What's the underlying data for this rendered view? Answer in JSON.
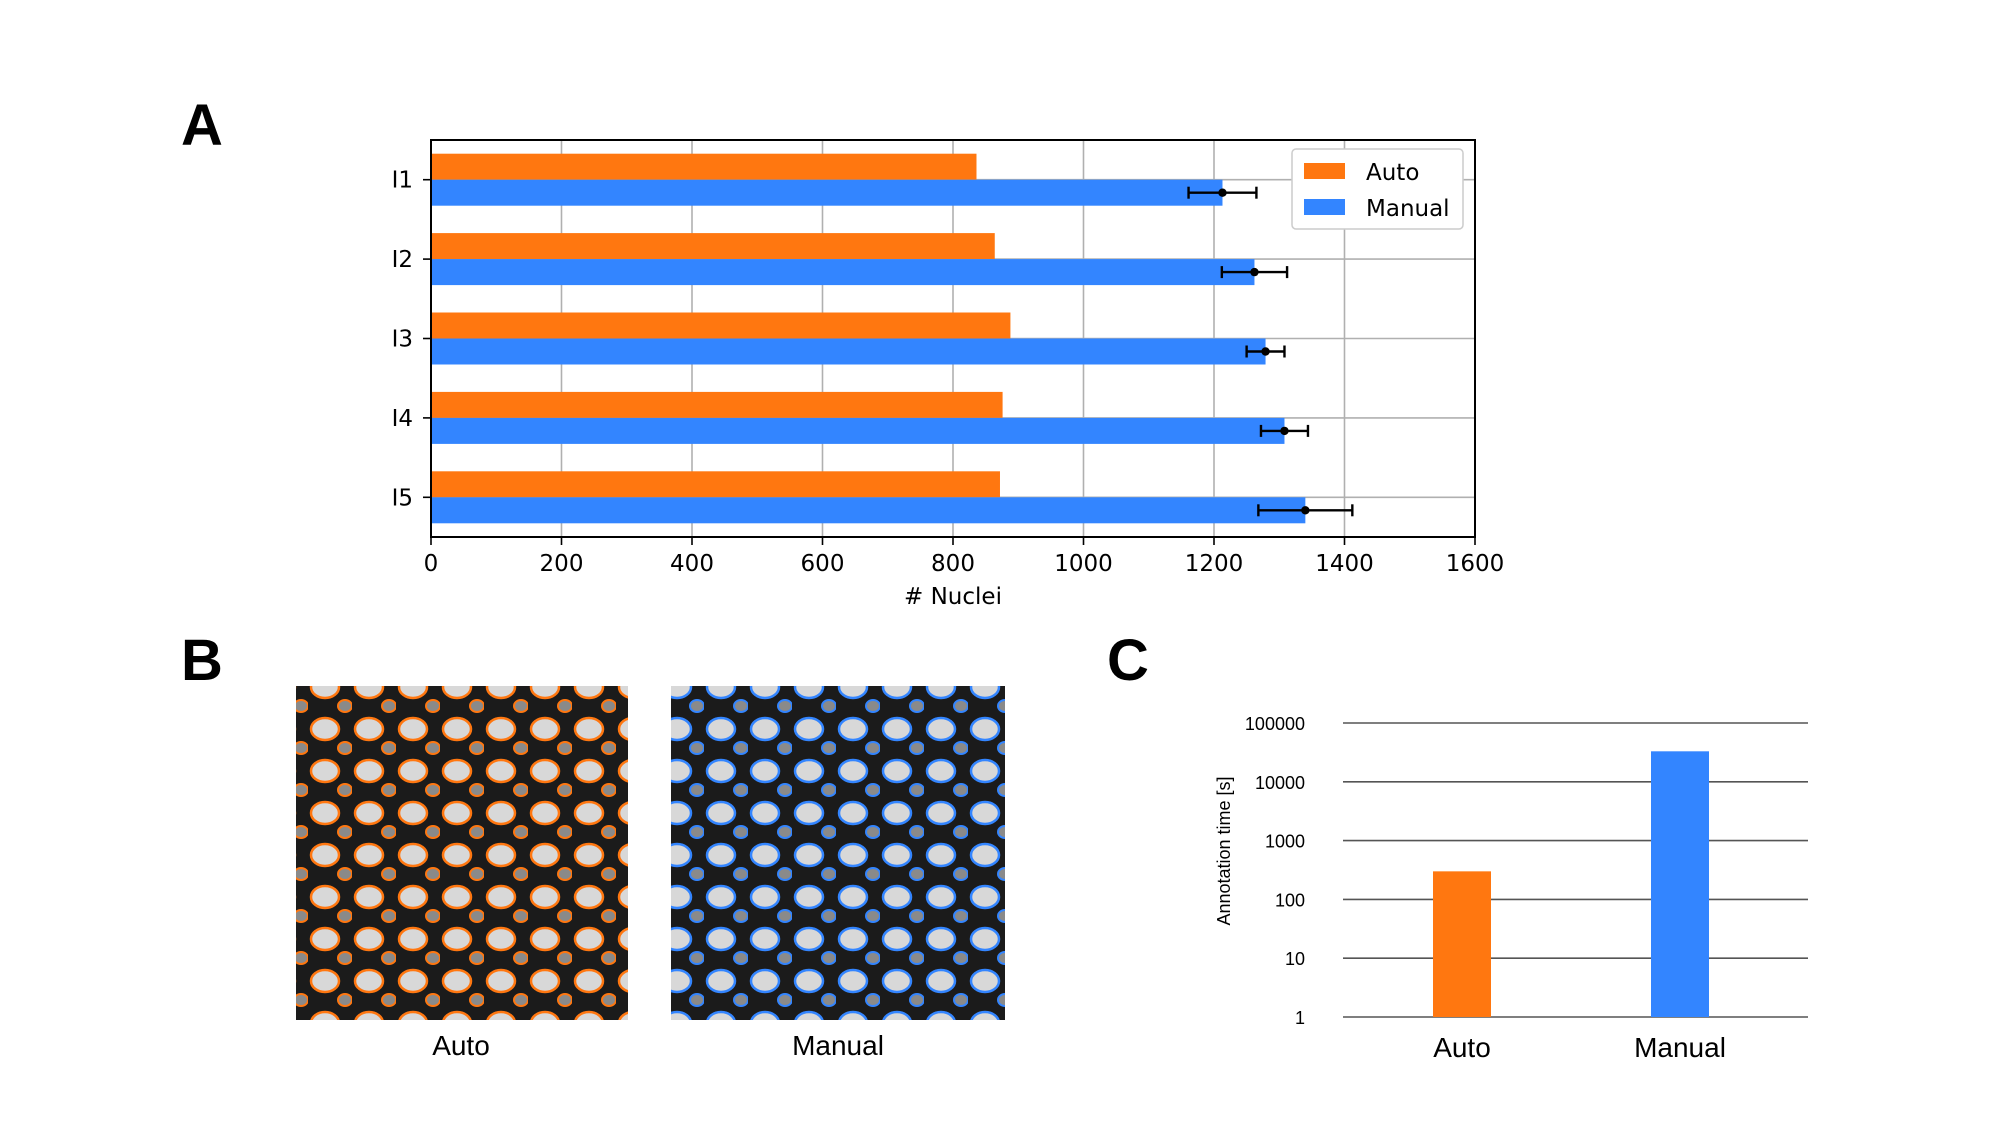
{
  "panels": {
    "a": "A",
    "b": "B",
    "c": "C"
  },
  "colors": {
    "auto": "#ff7710",
    "manual": "#3385ff",
    "error_bar": "#000000",
    "grid": "#b0b0b0"
  },
  "chart_data": [
    {
      "type": "bar",
      "orientation": "horizontal",
      "panel": "A",
      "categories": [
        "I1",
        "I2",
        "I3",
        "I4",
        "I5"
      ],
      "series": [
        {
          "name": "Auto",
          "values": [
            836,
            864,
            888,
            876,
            872
          ]
        },
        {
          "name": "Manual",
          "values": [
            1213,
            1262,
            1279,
            1308,
            1340
          ],
          "error": [
            52,
            50,
            29,
            36,
            72
          ]
        }
      ],
      "xlabel": "# Nuclei",
      "ylabel": "",
      "xlim": [
        0,
        1600
      ],
      "xticks": [
        "0",
        "200",
        "400",
        "600",
        "800",
        "1000",
        "1200",
        "1400",
        "1600"
      ],
      "grid": true,
      "legend": "top-right"
    },
    {
      "type": "bar",
      "panel": "C",
      "categories": [
        "Auto",
        "Manual"
      ],
      "values": [
        300,
        33000
      ],
      "ylabel": "Annotation time [s]",
      "yscale": "log",
      "ylim": [
        1,
        100000
      ],
      "yticks": [
        "1",
        "10",
        "100",
        "1000",
        "10000",
        "100000"
      ],
      "grid": true
    }
  ],
  "images": {
    "auto_label": "Auto",
    "manual_label": "Manual"
  }
}
